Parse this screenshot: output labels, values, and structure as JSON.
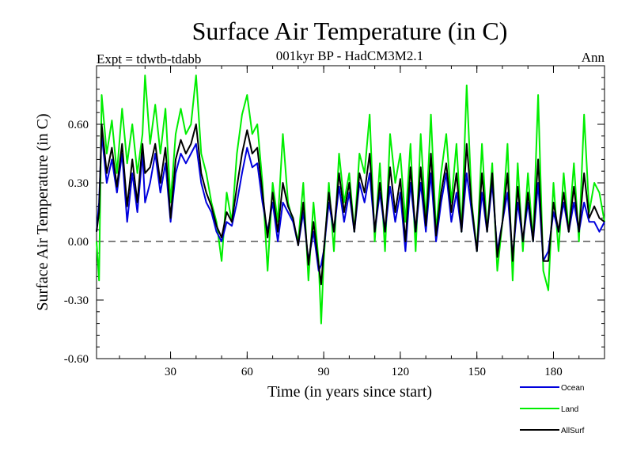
{
  "chart_data": {
    "type": "line",
    "title": "Surface Air Temperature (in C)",
    "subtitle": "001kyr BP - HadCM3M2.1",
    "left_label": "Expt = tdwtb-tdabb",
    "right_label": "Ann",
    "xlabel": "Time (in years since start)",
    "ylabel": "Surface Air Temperature (in C)",
    "xlim": [
      1,
      200
    ],
    "ylim": [
      -0.6,
      0.9
    ],
    "x_ticks": [
      30,
      60,
      90,
      120,
      150,
      180
    ],
    "x_tick_labels": [
      "30",
      "60",
      "90",
      "120",
      "150",
      "180"
    ],
    "y_ticks": [
      -0.6,
      -0.3,
      0.0,
      0.3,
      0.6
    ],
    "y_tick_labels": [
      "-0.60",
      "-0.30",
      "0.00",
      "0.30",
      "0.60"
    ],
    "reference_line": 0.0,
    "legend_position": "bottom-right",
    "series": [
      {
        "name": "Land",
        "color": "#00ee00",
        "x": [
          1,
          2,
          3,
          5,
          7,
          9,
          11,
          13,
          15,
          17,
          19,
          20,
          22,
          24,
          26,
          28,
          30,
          32,
          34,
          36,
          38,
          40,
          42,
          44,
          46,
          48,
          50,
          52,
          54,
          56,
          58,
          60,
          62,
          64,
          66,
          68,
          70,
          72,
          74,
          76,
          78,
          80,
          82,
          84,
          86,
          88,
          89,
          90,
          92,
          94,
          96,
          98,
          100,
          102,
          104,
          106,
          108,
          110,
          112,
          114,
          116,
          118,
          120,
          122,
          124,
          126,
          128,
          130,
          132,
          134,
          136,
          138,
          140,
          142,
          144,
          146,
          148,
          150,
          152,
          154,
          156,
          158,
          160,
          162,
          164,
          166,
          168,
          170,
          172,
          174,
          176,
          178,
          180,
          182,
          184,
          186,
          188,
          190,
          192,
          194,
          196,
          198,
          200
        ],
        "y": [
          0.0,
          -0.2,
          0.75,
          0.45,
          0.62,
          0.35,
          0.68,
          0.4,
          0.6,
          0.35,
          0.55,
          0.85,
          0.5,
          0.7,
          0.45,
          0.68,
          0.2,
          0.55,
          0.68,
          0.55,
          0.6,
          0.85,
          0.45,
          0.35,
          0.2,
          0.1,
          -0.1,
          0.25,
          0.1,
          0.45,
          0.65,
          0.75,
          0.55,
          0.6,
          0.3,
          -0.15,
          0.3,
          0.1,
          0.55,
          0.2,
          0.1,
          0.0,
          0.3,
          -0.2,
          0.2,
          -0.1,
          -0.42,
          -0.1,
          0.3,
          -0.05,
          0.45,
          0.2,
          0.35,
          0.05,
          0.45,
          0.35,
          0.65,
          0.0,
          0.4,
          -0.05,
          0.55,
          0.3,
          0.45,
          0.1,
          0.5,
          -0.05,
          0.55,
          0.1,
          0.65,
          0.05,
          0.35,
          0.55,
          0.2,
          0.5,
          0.05,
          0.8,
          0.2,
          -0.05,
          0.5,
          0.05,
          0.4,
          -0.15,
          0.1,
          0.5,
          -0.2,
          0.4,
          -0.05,
          0.35,
          0.0,
          0.75,
          -0.15,
          -0.25,
          0.3,
          -0.05,
          0.35,
          0.05,
          0.4,
          0.0,
          0.65,
          0.15,
          0.3,
          0.25,
          0.1
        ]
      },
      {
        "name": "Ocean",
        "color": "#0000dd",
        "x": [
          1,
          2,
          3,
          5,
          7,
          9,
          11,
          13,
          15,
          17,
          19,
          20,
          22,
          24,
          26,
          28,
          30,
          32,
          34,
          36,
          38,
          40,
          42,
          44,
          46,
          48,
          50,
          52,
          54,
          56,
          58,
          60,
          62,
          64,
          66,
          68,
          70,
          72,
          74,
          76,
          78,
          80,
          82,
          84,
          86,
          88,
          89,
          90,
          92,
          94,
          96,
          98,
          100,
          102,
          104,
          106,
          108,
          110,
          112,
          114,
          116,
          118,
          120,
          122,
          124,
          126,
          128,
          130,
          132,
          134,
          136,
          138,
          140,
          142,
          144,
          146,
          148,
          150,
          152,
          154,
          156,
          158,
          160,
          162,
          164,
          166,
          168,
          170,
          172,
          174,
          176,
          178,
          180,
          182,
          184,
          186,
          188,
          190,
          192,
          194,
          196,
          198,
          200
        ],
        "y": [
          0.05,
          0.2,
          0.55,
          0.3,
          0.42,
          0.25,
          0.45,
          0.1,
          0.35,
          0.15,
          0.45,
          0.2,
          0.3,
          0.45,
          0.25,
          0.4,
          0.1,
          0.35,
          0.45,
          0.4,
          0.45,
          0.5,
          0.3,
          0.2,
          0.15,
          0.05,
          0.0,
          0.1,
          0.08,
          0.2,
          0.35,
          0.48,
          0.38,
          0.4,
          0.2,
          0.05,
          0.2,
          0.0,
          0.2,
          0.15,
          0.1,
          -0.02,
          0.15,
          -0.1,
          0.05,
          -0.15,
          -0.12,
          -0.05,
          0.2,
          0.05,
          0.28,
          0.1,
          0.25,
          0.05,
          0.3,
          0.2,
          0.35,
          0.05,
          0.25,
          0.05,
          0.28,
          0.1,
          0.25,
          -0.05,
          0.3,
          0.05,
          0.3,
          0.05,
          0.35,
          0.0,
          0.2,
          0.35,
          0.1,
          0.25,
          0.05,
          0.35,
          0.15,
          -0.05,
          0.25,
          0.05,
          0.3,
          -0.05,
          0.1,
          0.25,
          -0.08,
          0.2,
          0.0,
          0.2,
          0.0,
          0.3,
          -0.1,
          -0.05,
          0.15,
          0.05,
          0.2,
          0.05,
          0.2,
          0.05,
          0.2,
          0.1,
          0.1,
          0.05,
          0.1
        ]
      },
      {
        "name": "AllSurf",
        "color": "#000000",
        "x": [
          1,
          2,
          3,
          5,
          7,
          9,
          11,
          13,
          15,
          17,
          19,
          20,
          22,
          24,
          26,
          28,
          30,
          32,
          34,
          36,
          38,
          40,
          42,
          44,
          46,
          48,
          50,
          52,
          54,
          56,
          58,
          60,
          62,
          64,
          66,
          68,
          70,
          72,
          74,
          76,
          78,
          80,
          82,
          84,
          86,
          88,
          89,
          90,
          92,
          94,
          96,
          98,
          100,
          102,
          104,
          106,
          108,
          110,
          112,
          114,
          116,
          118,
          120,
          122,
          124,
          126,
          128,
          130,
          132,
          134,
          136,
          138,
          140,
          142,
          144,
          146,
          148,
          150,
          152,
          154,
          156,
          158,
          160,
          162,
          164,
          166,
          168,
          170,
          172,
          174,
          176,
          178,
          180,
          182,
          184,
          186,
          188,
          190,
          192,
          194,
          196,
          198,
          200
        ],
        "y": [
          0.05,
          0.15,
          0.6,
          0.35,
          0.48,
          0.28,
          0.5,
          0.18,
          0.42,
          0.2,
          0.5,
          0.35,
          0.38,
          0.5,
          0.3,
          0.48,
          0.12,
          0.42,
          0.52,
          0.45,
          0.5,
          0.6,
          0.35,
          0.25,
          0.18,
          0.08,
          0.02,
          0.15,
          0.1,
          0.28,
          0.45,
          0.57,
          0.45,
          0.48,
          0.25,
          0.02,
          0.25,
          0.05,
          0.3,
          0.18,
          0.12,
          -0.02,
          0.2,
          -0.12,
          0.1,
          -0.12,
          -0.22,
          -0.05,
          0.25,
          0.05,
          0.35,
          0.15,
          0.3,
          0.05,
          0.35,
          0.25,
          0.45,
          0.05,
          0.3,
          0.05,
          0.38,
          0.15,
          0.32,
          0.0,
          0.38,
          0.05,
          0.38,
          0.08,
          0.45,
          0.03,
          0.25,
          0.4,
          0.15,
          0.35,
          0.05,
          0.5,
          0.18,
          -0.05,
          0.35,
          0.05,
          0.35,
          -0.08,
          0.1,
          0.35,
          -0.1,
          0.28,
          0.0,
          0.25,
          0.0,
          0.42,
          -0.1,
          -0.1,
          0.2,
          0.05,
          0.25,
          0.05,
          0.28,
          0.05,
          0.35,
          0.12,
          0.18,
          0.12,
          0.1
        ]
      }
    ]
  }
}
